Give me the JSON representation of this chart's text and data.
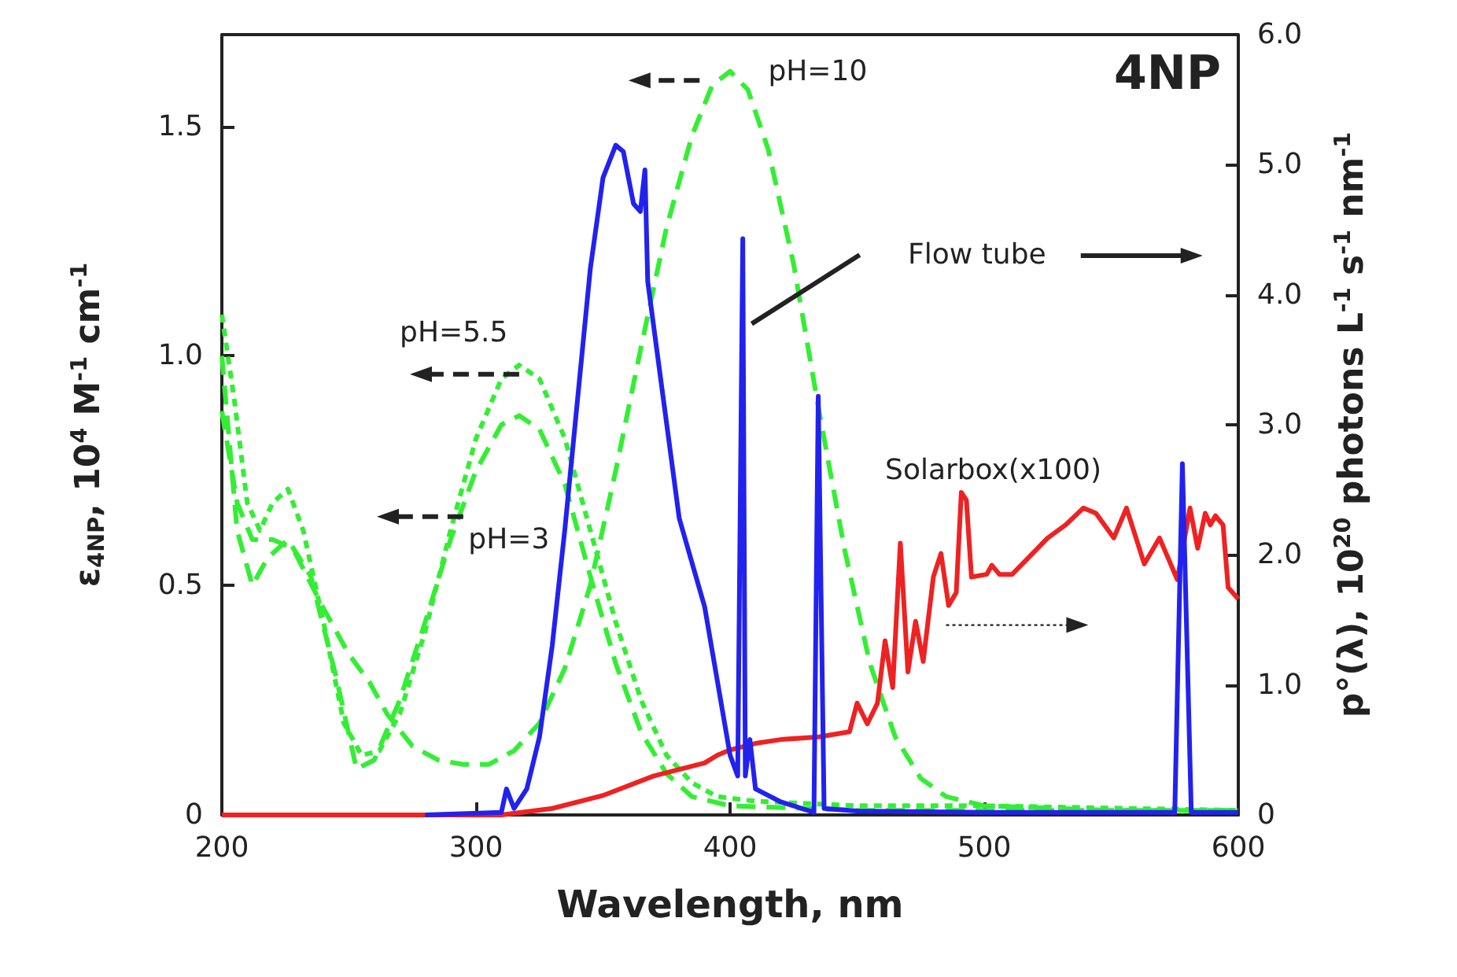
{
  "chart_data": {
    "type": "line",
    "xlabel": "Wavelength, nm",
    "ylabel": "ε$_{4NP}$, 10$^{4}$ M$^{-1}$ cm$^{-1}$",
    "y2label": "p°(λ), 10$^{20}$ photons L$^{-1}$ s$^{-1}$ nm$^{-1}$",
    "xlim": [
      200,
      600
    ],
    "xticks": [
      200,
      300,
      400,
      500,
      600
    ],
    "ylim": [
      0,
      1.7
    ],
    "yticks": [
      0,
      0.5,
      {
        "value": 1,
        "label": "1.0"
      },
      1.5
    ],
    "y2lim": [
      0,
      6
    ],
    "y2ticks": [
      0,
      {
        "value": 1,
        "label": "1.0"
      },
      {
        "value": 2,
        "label": "2.0"
      },
      {
        "value": 3,
        "label": "3.0"
      },
      {
        "value": 4,
        "label": "4.0"
      },
      {
        "value": 5,
        "label": "5.0"
      },
      {
        "value": 6,
        "label": "6.0"
      }
    ],
    "grid": false,
    "marker": "none",
    "series": [
      {
        "color": "#33ee33",
        "line_style": "dashed",
        "x": [
          200,
          206,
          212,
          220,
          228,
          240,
          250,
          258,
          265,
          275,
          285,
          295,
          305,
          315,
          325,
          335,
          345,
          355,
          365,
          375,
          385,
          393,
          400,
          407,
          415,
          425,
          435,
          445,
          455,
          465,
          475,
          485,
          500,
          550,
          600
        ],
        "values": [
          0.88,
          0.68,
          0.6,
          0.6,
          0.58,
          0.45,
          0.35,
          0.29,
          0.22,
          0.15,
          0.12,
          0.11,
          0.11,
          0.14,
          0.2,
          0.32,
          0.5,
          0.75,
          1.02,
          1.28,
          1.48,
          1.59,
          1.62,
          1.58,
          1.45,
          1.2,
          0.88,
          0.58,
          0.33,
          0.17,
          0.08,
          0.04,
          0.02,
          0.01,
          0.01
        ]
      },
      {
        "color": "#33ee33",
        "line_style": "dotted",
        "x": [
          200,
          205,
          210,
          215,
          220,
          226,
          232,
          240,
          248,
          255,
          262,
          270,
          280,
          290,
          300,
          310,
          317,
          325,
          335,
          345,
          355,
          365,
          375,
          385,
          395,
          410,
          450,
          500,
          600
        ],
        "values": [
          1.09,
          0.9,
          0.68,
          0.62,
          0.68,
          0.71,
          0.62,
          0.42,
          0.2,
          0.13,
          0.14,
          0.22,
          0.4,
          0.62,
          0.82,
          0.95,
          0.98,
          0.95,
          0.82,
          0.62,
          0.42,
          0.25,
          0.13,
          0.07,
          0.04,
          0.03,
          0.02,
          0.02,
          0.01
        ]
      },
      {
        "color": "#33ee33",
        "line_style": "dashed",
        "x": [
          200,
          206,
          212,
          218,
          226,
          235,
          245,
          253,
          260,
          270,
          280,
          290,
          300,
          310,
          317,
          325,
          335,
          345,
          355,
          365,
          375,
          385,
          400,
          450,
          600
        ],
        "values": [
          1.0,
          0.62,
          0.5,
          0.56,
          0.6,
          0.52,
          0.3,
          0.1,
          0.12,
          0.25,
          0.42,
          0.6,
          0.75,
          0.85,
          0.87,
          0.84,
          0.72,
          0.52,
          0.33,
          0.18,
          0.09,
          0.04,
          0.02,
          0.01,
          0.01
        ]
      },
      {
        "color": "#ee2222",
        "axis": "y2",
        "line_style": "solid",
        "x": [
          200,
          310,
          330,
          350,
          370,
          380,
          390,
          395,
          400,
          410,
          420,
          435,
          447,
          450,
          454,
          458,
          461,
          464,
          467,
          470,
          473,
          476,
          480,
          483,
          486,
          489,
          491,
          493,
          495,
          501,
          503,
          506,
          511,
          517,
          525,
          532,
          539,
          544,
          551,
          556,
          563,
          569,
          576,
          581,
          584,
          587,
          589,
          591,
          594,
          596,
          600
        ],
        "values": [
          0,
          0,
          0.05,
          0.15,
          0.3,
          0.35,
          0.4,
          0.46,
          0.5,
          0.55,
          0.58,
          0.6,
          0.64,
          0.86,
          0.7,
          0.86,
          1.34,
          0.98,
          2.09,
          1.1,
          1.49,
          1.18,
          1.83,
          2.01,
          1.61,
          1.71,
          2.48,
          2.42,
          1.83,
          1.85,
          1.92,
          1.85,
          1.85,
          1.97,
          2.13,
          2.23,
          2.36,
          2.32,
          2.13,
          2.36,
          1.93,
          2.13,
          1.81,
          2.36,
          2.05,
          2.32,
          2.23,
          2.3,
          2.23,
          1.75,
          1.66
        ]
      },
      {
        "color": "#2222ee",
        "axis": "y2",
        "line_style": "solid",
        "x": [
          280,
          310,
          312,
          315,
          320,
          325,
          330,
          335,
          340,
          345,
          350,
          355,
          358,
          362,
          364.7,
          366.5,
          367.6,
          380,
          390,
          400,
          403,
          405,
          406,
          407.8,
          410,
          420,
          433,
          434.7,
          437,
          450,
          500,
          575,
          578,
          581.5,
          600
        ],
        "values": [
          0,
          0.02,
          0.2,
          0.05,
          0.2,
          0.6,
          1.3,
          2.2,
          3.2,
          4.2,
          4.9,
          5.15,
          5.1,
          4.7,
          4.64,
          4.96,
          4.1,
          2.28,
          1.6,
          0.46,
          0.3,
          4.43,
          0.3,
          0.58,
          0.2,
          0.1,
          0.02,
          3.22,
          0.05,
          0.03,
          0.02,
          0.02,
          2.7,
          0.02,
          0.02
        ]
      }
    ],
    "annotations": [
      "4NP",
      "pH=10",
      "pH=5.5",
      "pH=3",
      "Flow tube",
      "Solarbox(x100)"
    ]
  }
}
